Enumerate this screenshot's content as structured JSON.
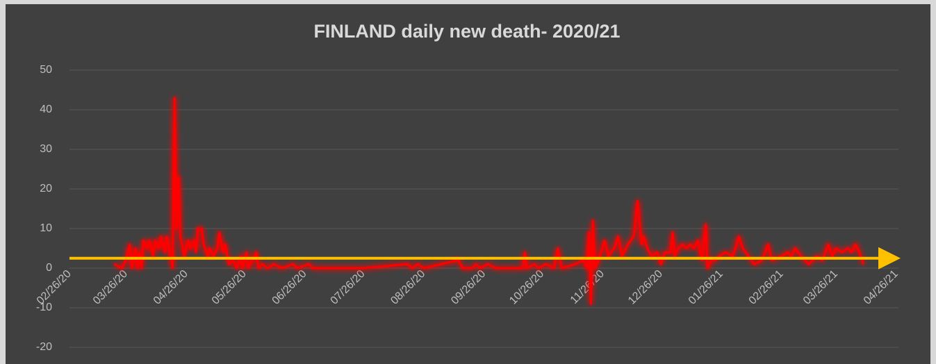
{
  "chart_data": {
    "type": "line",
    "title": "FINLAND daily new death- 2020/21",
    "x": [
      "03/20/20",
      "03/24/20",
      "03/26/20",
      "03/28/20",
      "03/29/20",
      "03/31/20",
      "04/01/20",
      "04/02/20",
      "04/03/20",
      "04/04/20",
      "04/06/20",
      "04/07/20",
      "04/09/20",
      "04/10/20",
      "04/12/20",
      "04/13/20",
      "04/15/20",
      "04/16/20",
      "04/18/20",
      "04/19/20",
      "04/20/20",
      "04/21/20",
      "04/22/20",
      "04/23/20",
      "04/25/20",
      "04/27/20",
      "04/28/20",
      "04/30/20",
      "05/01/20",
      "05/02/20",
      "05/04/20",
      "05/05/20",
      "05/07/20",
      "05/08/20",
      "05/10/20",
      "05/12/20",
      "05/13/20",
      "05/15/20",
      "05/16/20",
      "05/18/20",
      "05/20/20",
      "05/22/20",
      "05/24/20",
      "05/25/20",
      "05/27/20",
      "05/28/20",
      "05/30/20",
      "06/01/20",
      "06/02/20",
      "06/04/20",
      "06/07/20",
      "06/10/20",
      "06/14/20",
      "06/20/20",
      "06/22/20",
      "06/28/20",
      "06/30/20",
      "07/26/20",
      "08/18/20",
      "08/20/20",
      "08/23/20",
      "08/26/20",
      "09/13/20",
      "09/15/20",
      "09/20/20",
      "09/22/20",
      "09/24/20",
      "09/28/20",
      "10/02/20",
      "10/16/20",
      "10/17/20",
      "10/18/20",
      "10/22/20",
      "10/24/20",
      "10/28/20",
      "11/01/20",
      "11/03/20",
      "11/05/20",
      "11/12/20",
      "11/16/20",
      "11/18/20",
      "11/19/20",
      "11/20/20",
      "11/21/20",
      "11/22/20",
      "11/24/20",
      "11/27/20",
      "11/29/20",
      "12/02/20",
      "12/04/20",
      "12/06/20",
      "12/09/20",
      "12/12/20",
      "12/14/20",
      "12/16/20",
      "12/17/20",
      "12/19/20",
      "12/21/20",
      "12/24/20",
      "12/26/20",
      "12/28/20",
      "12/31/20",
      "01/01/21",
      "01/02/21",
      "01/04/21",
      "01/06/21",
      "01/08/21",
      "01/10/21",
      "01/12/21",
      "01/14/21",
      "01/16/21",
      "01/18/21",
      "01/19/21",
      "01/21/21",
      "01/23/21",
      "01/25/21",
      "01/28/21",
      "02/01/21",
      "02/04/21",
      "02/06/21",
      "02/09/21",
      "02/12/21",
      "02/16/21",
      "02/19/21",
      "02/21/21",
      "02/26/21",
      "03/01/21",
      "03/03/21",
      "03/05/21",
      "03/08/21",
      "03/12/21",
      "03/16/21",
      "03/19/21",
      "03/22/21",
      "03/24/21",
      "03/26/21",
      "03/29/21",
      "04/01/21",
      "04/03/21",
      "04/05/21",
      "04/07/21",
      "04/09/21"
    ],
    "series": [
      {
        "color": "#ff0000",
        "values": [
          1,
          0,
          2,
          6,
          0,
          5,
          0,
          4,
          0,
          7,
          5,
          7,
          3,
          7,
          5,
          8,
          4,
          8,
          3,
          0,
          43,
          10,
          23,
          8,
          3,
          7,
          5,
          7,
          4,
          10,
          10,
          6,
          3,
          5,
          3,
          5,
          9,
          4,
          6,
          1,
          2,
          0,
          3,
          0,
          4,
          0,
          2,
          4,
          0,
          1,
          0,
          1,
          0,
          1,
          0,
          1,
          0,
          0,
          1,
          0,
          1,
          0,
          2,
          0,
          0,
          1,
          0,
          1,
          0,
          0,
          4,
          0,
          1,
          0,
          1,
          0,
          5,
          0,
          1,
          2,
          0,
          9,
          -9,
          12,
          0,
          2,
          7,
          3,
          5,
          8,
          3,
          6,
          8,
          17,
          6,
          8,
          5,
          3,
          4,
          1,
          4,
          4,
          9,
          3,
          5,
          6,
          5,
          6,
          5,
          7,
          2,
          11,
          0,
          2,
          2,
          3,
          4,
          3,
          8,
          5,
          3,
          1,
          2,
          6,
          2,
          3,
          4,
          3,
          5,
          3,
          1,
          3,
          2,
          6,
          3,
          5,
          4,
          5,
          4,
          6,
          4,
          1
        ]
      }
    ],
    "trendline": {
      "x": [
        "02/26/20",
        "04/26/21"
      ],
      "values": [
        2.5,
        2.5
      ],
      "color": "#ffc000"
    },
    "xlim": [
      "02/26/20",
      "04/26/21"
    ],
    "xticks": [
      "02/26/20",
      "03/26/20",
      "04/26/20",
      "05/26/20",
      "06/26/20",
      "07/26/20",
      "08/26/20",
      "09/26/20",
      "10/26/20",
      "11/26/20",
      "12/26/20",
      "01/26/21",
      "02/26/21",
      "03/26/21",
      "04/26/21"
    ],
    "ylim": [
      -20,
      50
    ],
    "yticks": [
      -20,
      -10,
      0,
      10,
      20,
      30,
      40,
      50
    ],
    "grid": true
  }
}
